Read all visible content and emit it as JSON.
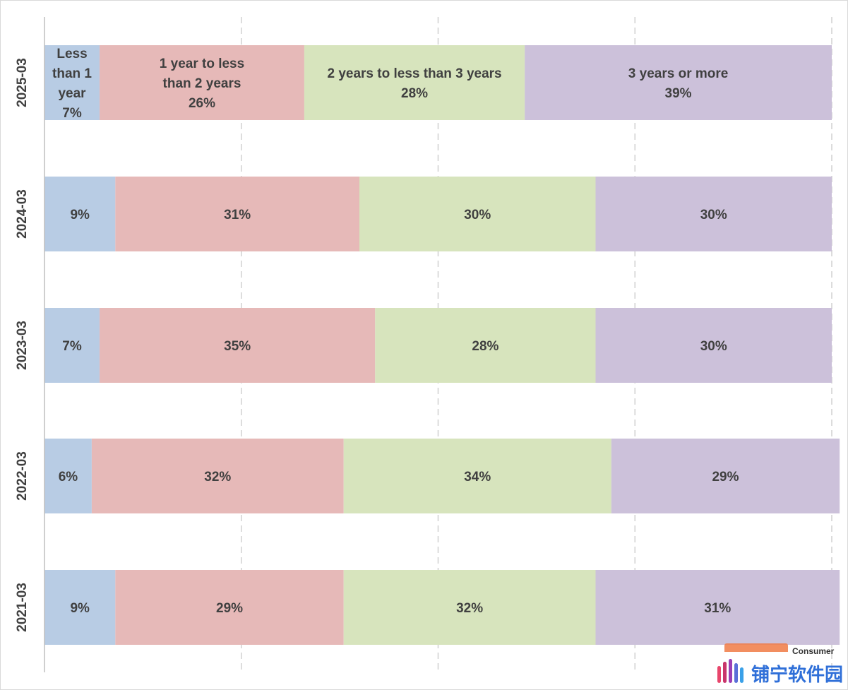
{
  "chart_data": {
    "type": "bar",
    "orientation": "horizontal",
    "stacked": true,
    "categories": [
      "2025-03",
      "2024-03",
      "2023-03",
      "2022-03",
      "2021-03"
    ],
    "series": [
      {
        "name": "Less than 1 year",
        "color": "#b8cce4",
        "values": [
          7,
          9,
          7,
          6,
          9
        ]
      },
      {
        "name": "1 year to less than 2 years",
        "color": "#e6b9b8",
        "values": [
          26,
          31,
          35,
          32,
          29
        ]
      },
      {
        "name": "2 years to less than 3 years",
        "color": "#d7e4bd",
        "values": [
          28,
          30,
          28,
          34,
          32
        ]
      },
      {
        "name": "3 years or more",
        "color": "#ccc1da",
        "values": [
          39,
          30,
          30,
          29,
          31
        ]
      }
    ],
    "data_labels": [
      [
        [
          "Less",
          "than 1",
          "year",
          "7%"
        ],
        [
          "1 year to less",
          "than 2 years",
          "26%"
        ],
        [
          "2 years to less than 3 years",
          "28%"
        ],
        [
          "3 years or more",
          "39%"
        ]
      ],
      [
        [
          "9%"
        ],
        [
          "31%"
        ],
        [
          "30%"
        ],
        [
          "30%"
        ]
      ],
      [
        [
          "7%"
        ],
        [
          "35%"
        ],
        [
          "28%"
        ],
        [
          "30%"
        ]
      ],
      [
        [
          "6%"
        ],
        [
          "32%"
        ],
        [
          "34%"
        ],
        [
          "29%"
        ]
      ],
      [
        [
          "9%"
        ],
        [
          "29%"
        ],
        [
          "32%"
        ],
        [
          "31%"
        ]
      ]
    ],
    "xlim": [
      0,
      100
    ],
    "grid": true,
    "legend": "none"
  },
  "watermark": {
    "small_text": "Consumer",
    "text": "铺宁软件园"
  }
}
